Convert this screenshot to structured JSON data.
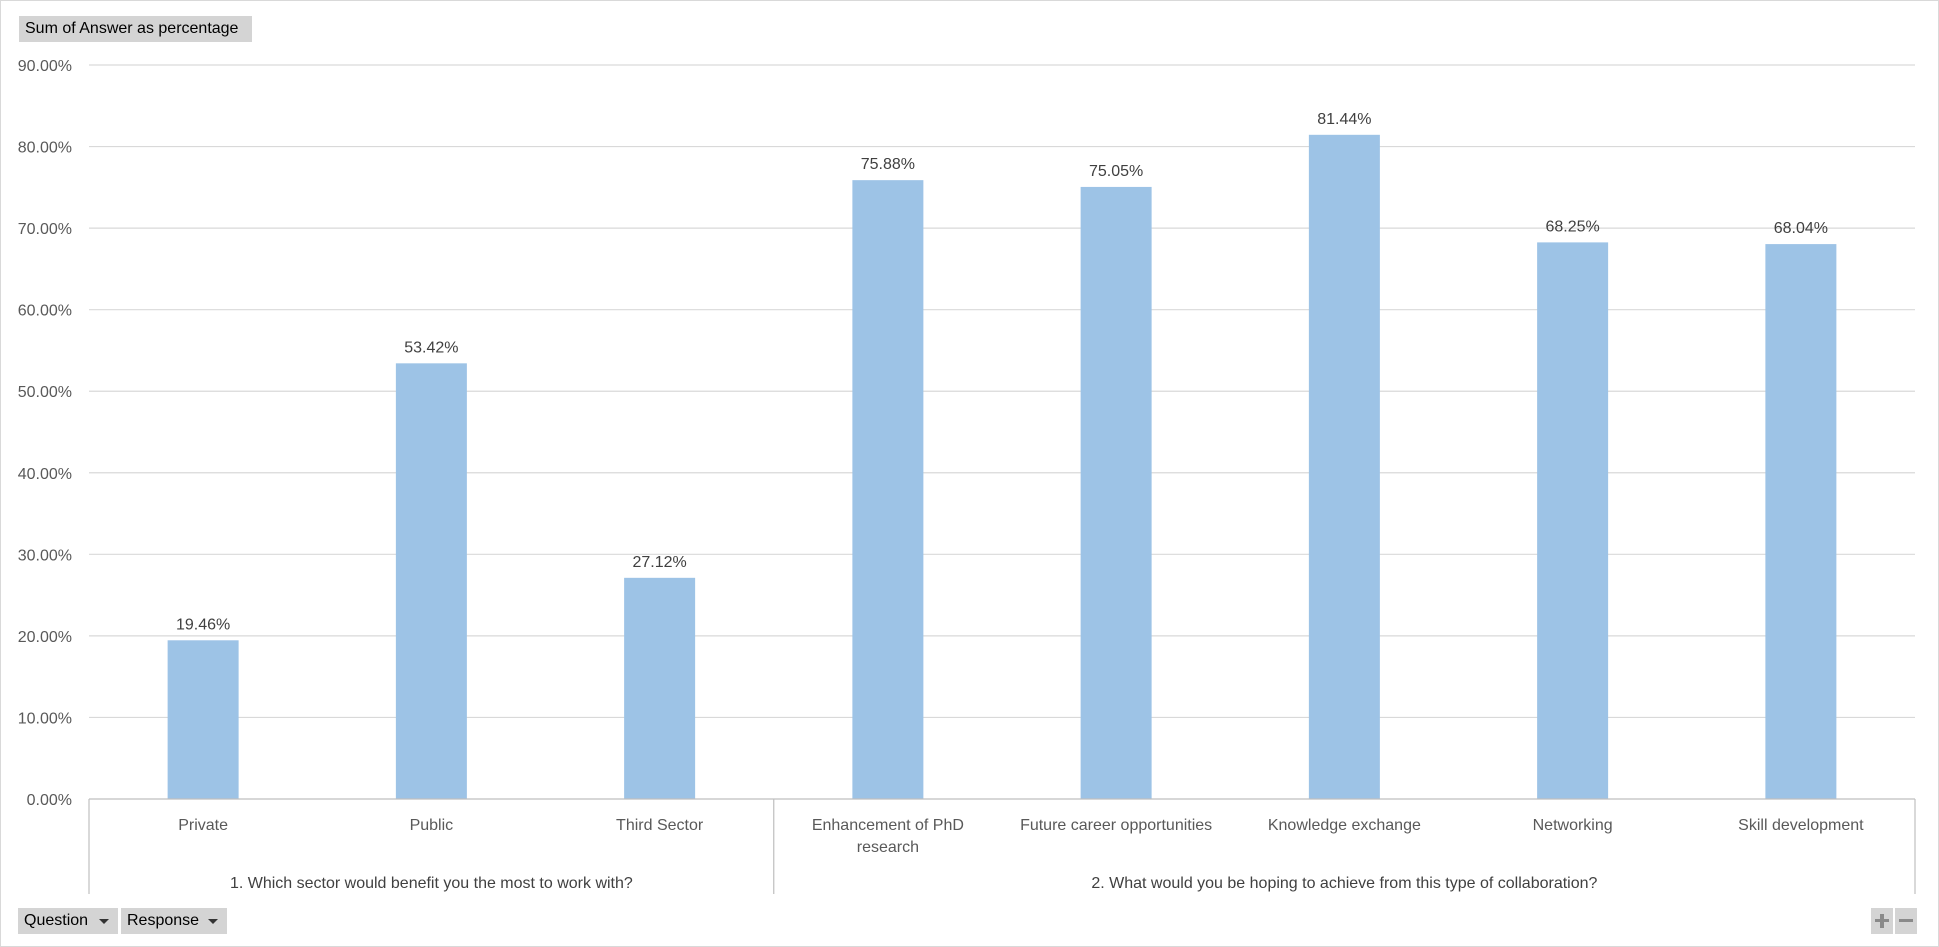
{
  "field_buttons": {
    "value_field": "Sum of Answer as percentage",
    "axis_fields": [
      "Question",
      "Response"
    ]
  },
  "chart_data": {
    "type": "bar",
    "series": [
      {
        "color": "#9dc3e6",
        "values": [
          19.46,
          53.42,
          27.12,
          75.88,
          75.05,
          81.44,
          68.25,
          68.04
        ],
        "value_labels": [
          "19.46%",
          "53.42%",
          "27.12%",
          "75.88%",
          "75.05%",
          "81.44%",
          "68.25%",
          "68.04%"
        ]
      }
    ],
    "categories": [
      [
        "Private"
      ],
      [
        "Public"
      ],
      [
        "Third Sector"
      ],
      [
        "Enhancement of PhD",
        "research"
      ],
      [
        "Future career opportunities"
      ],
      [
        "Knowledge exchange"
      ],
      [
        "Networking"
      ],
      [
        "Skill development"
      ]
    ],
    "groups": [
      {
        "label": "1. Which sector would benefit you the most to work with?",
        "count": 3
      },
      {
        "label": "2. What would you be hoping to achieve from this type of collaboration?",
        "count": 5
      }
    ],
    "ylim": [
      0,
      90
    ],
    "y_ticks": [
      "0.00%",
      "10.00%",
      "20.00%",
      "30.00%",
      "40.00%",
      "50.00%",
      "60.00%",
      "70.00%",
      "80.00%",
      "90.00%"
    ],
    "grid": true,
    "legend": "none",
    "colors": {
      "bar": "#9dc3e6",
      "grid": "#d9d9d9",
      "axis": "#bfbfbf",
      "text": "#595959"
    }
  }
}
